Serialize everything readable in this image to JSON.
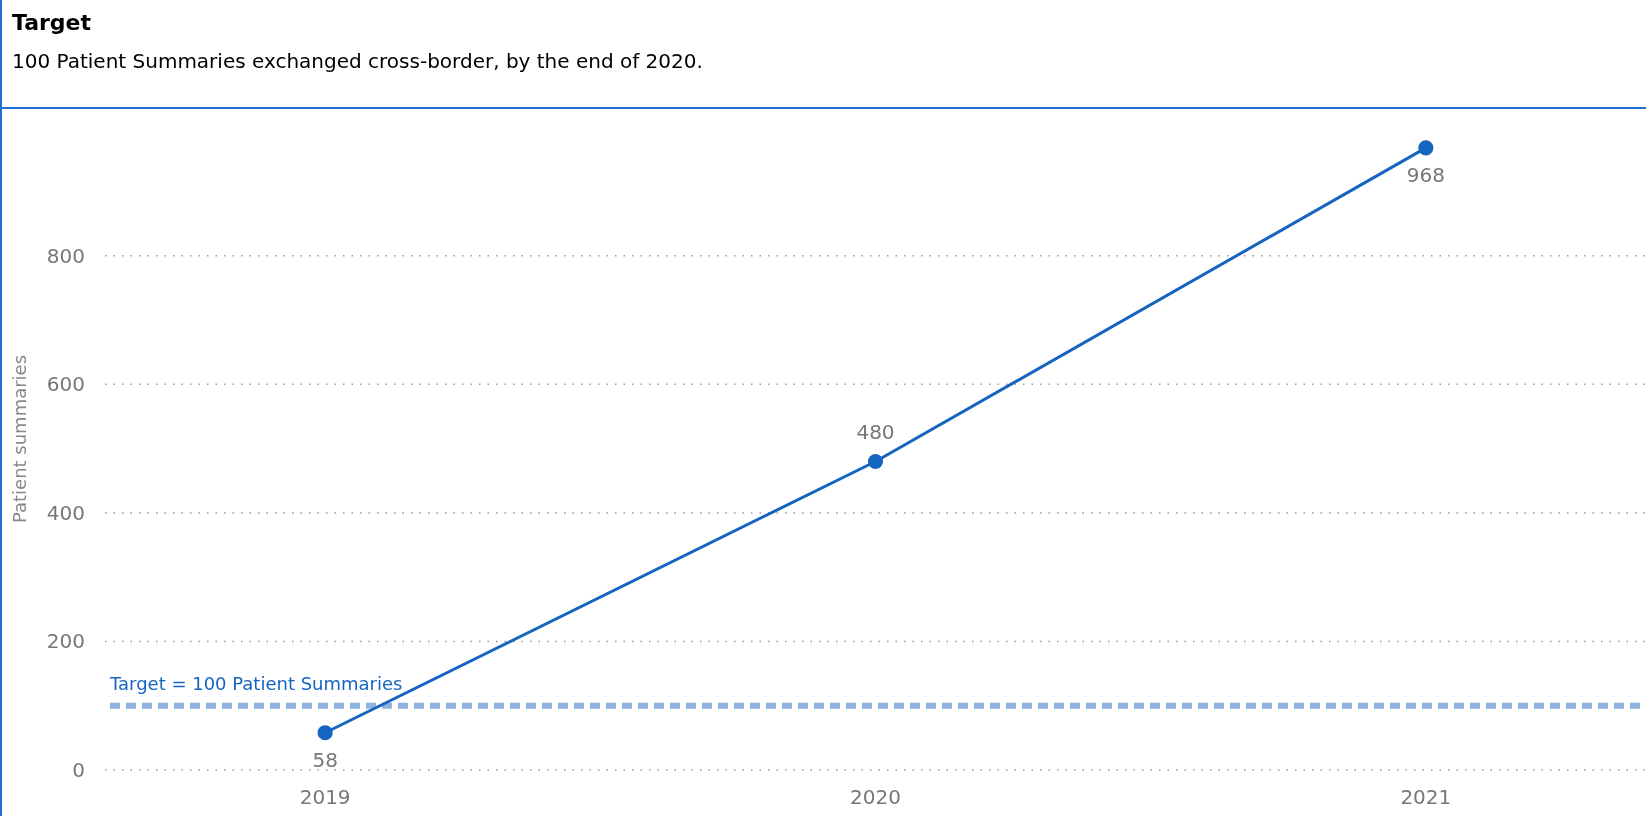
{
  "chart_data": {
    "type": "line",
    "title": "Target",
    "subtitle": "100 Patient Summaries exchanged cross-border, by the end of 2020.",
    "ylabel": "Patient summaries",
    "categories": [
      "2019",
      "2020",
      "2021"
    ],
    "series": [
      {
        "color": "#1565c0",
        "values": [
          58,
          480,
          968
        ]
      }
    ],
    "ylim": [
      0,
      1030
    ],
    "yticks": [
      0,
      200,
      400,
      600,
      800
    ],
    "grid": "y",
    "marker": "circle",
    "line_style": "solid",
    "data_labels": true,
    "ref_lines": [
      {
        "axis": "y",
        "value": 100,
        "label": "Target = 100 Patient Summaries",
        "color": "#8fb3e0",
        "line_style": "dashed"
      }
    ]
  }
}
